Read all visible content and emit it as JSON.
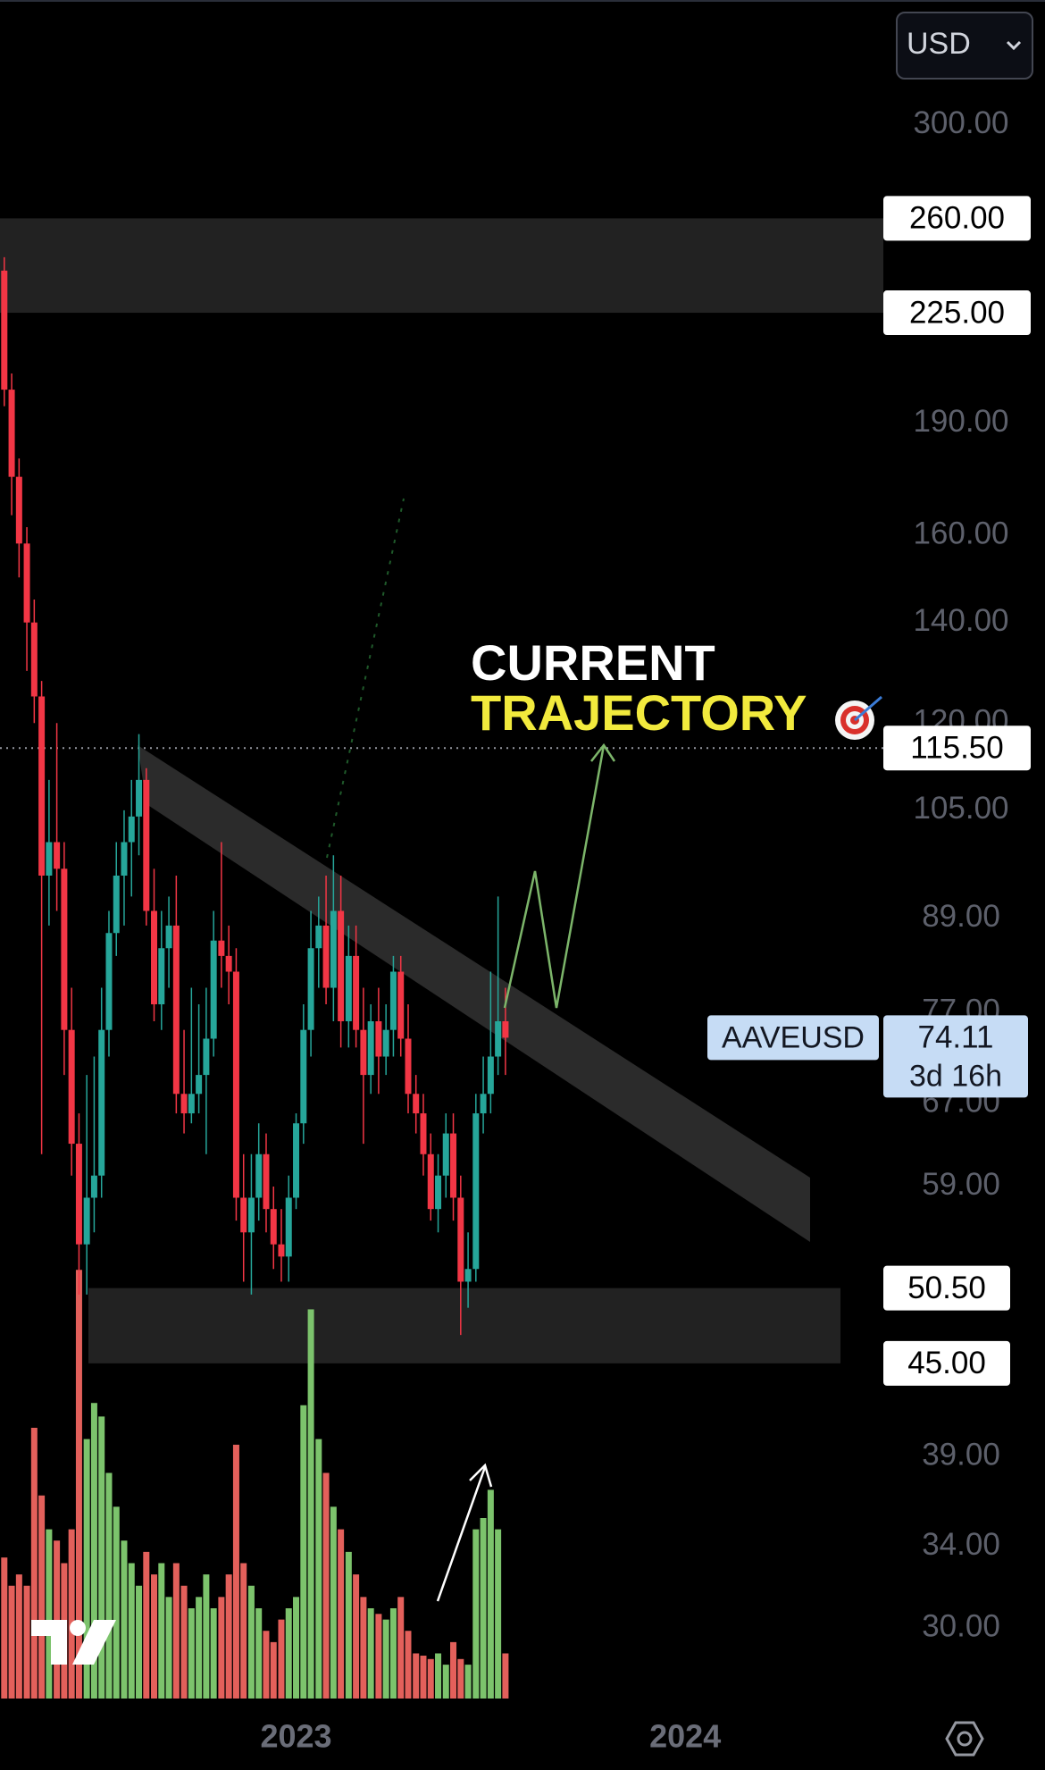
{
  "chart_data": {
    "type": "candlestick",
    "log_scale": true,
    "currency": "USD",
    "x": [
      2022.25,
      2022.269,
      2022.288,
      2022.308,
      2022.327,
      2022.346,
      2022.365,
      2022.385,
      2022.404,
      2022.423,
      2022.442,
      2022.462,
      2022.481,
      2022.5,
      2022.519,
      2022.538,
      2022.558,
      2022.577,
      2022.596,
      2022.615,
      2022.635,
      2022.654,
      2022.673,
      2022.692,
      2022.712,
      2022.731,
      2022.75,
      2022.769,
      2022.788,
      2022.808,
      2022.827,
      2022.846,
      2022.865,
      2022.885,
      2022.904,
      2022.923,
      2022.942,
      2022.962,
      2022.981,
      2023.0,
      2023.019,
      2023.038,
      2023.058,
      2023.077,
      2023.096,
      2023.115,
      2023.135,
      2023.154,
      2023.173,
      2023.192,
      2023.212,
      2023.231,
      2023.25,
      2023.269,
      2023.288,
      2023.308,
      2023.327,
      2023.346,
      2023.365,
      2023.385,
      2023.404,
      2023.423,
      2023.442,
      2023.462,
      2023.481,
      2023.5,
      2023.519,
      2023.538
    ],
    "open": [
      240,
      200,
      175,
      158,
      140,
      125,
      95,
      100,
      96,
      75,
      63,
      54,
      58,
      60,
      75,
      87,
      95,
      100,
      104,
      110,
      90,
      78,
      85,
      88,
      68,
      66,
      68,
      70,
      74,
      86,
      84,
      82,
      58,
      55,
      58,
      62,
      57,
      54,
      53,
      58,
      65,
      75,
      85,
      88,
      80,
      90,
      76,
      84,
      75,
      70,
      76,
      72,
      75,
      82,
      74,
      68,
      66,
      62,
      57,
      60,
      64,
      58,
      51,
      52,
      66,
      68,
      72,
      76
    ],
    "high": [
      245,
      205,
      180,
      162,
      145,
      128,
      110,
      120,
      100,
      80,
      66,
      70,
      72,
      80,
      90,
      100,
      105,
      110,
      118,
      112,
      96,
      90,
      92,
      95,
      75,
      80,
      78,
      80,
      90,
      100,
      88,
      85,
      62,
      62,
      65,
      64,
      59,
      57,
      60,
      66,
      78,
      90,
      92,
      95,
      98,
      95,
      88,
      88,
      80,
      78,
      80,
      78,
      84,
      84,
      78,
      70,
      68,
      64,
      62,
      66,
      66,
      60,
      55,
      68,
      72,
      82,
      92,
      80
    ],
    "low": [
      195,
      165,
      150,
      130,
      120,
      62,
      88,
      90,
      70,
      60,
      50,
      50,
      55,
      58,
      72,
      84,
      88,
      92,
      98,
      88,
      76,
      75,
      80,
      66,
      64,
      65,
      66,
      62,
      72,
      80,
      78,
      56,
      51,
      50,
      56,
      55,
      52,
      51,
      51,
      57,
      63,
      72,
      80,
      78,
      76,
      73,
      73,
      73,
      63,
      68,
      68,
      70,
      72,
      72,
      66,
      64,
      60,
      56,
      55,
      58,
      56,
      47,
      49,
      51,
      64,
      66,
      70,
      70
    ],
    "close": [
      200,
      175,
      158,
      140,
      125,
      95,
      100,
      96,
      75,
      63,
      54,
      58,
      60,
      75,
      87,
      95,
      100,
      104,
      110,
      90,
      78,
      85,
      88,
      68,
      66,
      68,
      70,
      74,
      86,
      84,
      82,
      58,
      55,
      58,
      62,
      57,
      54,
      53,
      58,
      65,
      75,
      85,
      88,
      80,
      90,
      76,
      84,
      75,
      70,
      76,
      72,
      75,
      82,
      74,
      68,
      66,
      62,
      57,
      60,
      64,
      58,
      51,
      52,
      66,
      68,
      72,
      76,
      74.11
    ],
    "volume": [
      125,
      100,
      110,
      100,
      240,
      180,
      150,
      140,
      120,
      150,
      380,
      230,
      262,
      250,
      200,
      170,
      140,
      120,
      100,
      130,
      110,
      120,
      90,
      120,
      100,
      80,
      90,
      110,
      80,
      90,
      110,
      225,
      120,
      100,
      80,
      60,
      50,
      70,
      80,
      90,
      260,
      345,
      230,
      200,
      170,
      150,
      130,
      110,
      90,
      80,
      75,
      70,
      80,
      90,
      60,
      40,
      38,
      35,
      40,
      30,
      50,
      35,
      30,
      150,
      160,
      185,
      150,
      40
    ],
    "volume_lim": [
      0,
      400
    ],
    "up_color": "#26a69a",
    "down_color": "#f23645",
    "volume_up_color": "#7cc36c",
    "volume_down_color": "#e3605b",
    "xlim": [
      2022.239,
      2024.5
    ],
    "xticks": [
      2023,
      2024
    ],
    "ylim": [
      26.93,
      363.3
    ],
    "yticks": [
      {
        "value": 300,
        "label": "300.00"
      },
      {
        "value": 190,
        "label": "190.00"
      },
      {
        "value": 160,
        "label": "160.00"
      },
      {
        "value": 140,
        "label": "140.00"
      },
      {
        "value": 120,
        "label": "120.00"
      },
      {
        "value": 105,
        "label": "105.00"
      },
      {
        "value": 89,
        "label": "89.00"
      },
      {
        "value": 77,
        "label": "77.00"
      },
      {
        "value": 67,
        "label": "67.00"
      },
      {
        "value": 59,
        "label": "59.00"
      },
      {
        "value": 39,
        "label": "39.00"
      },
      {
        "value": 34,
        "label": "34.00"
      },
      {
        "value": 30,
        "label": "30.00"
      }
    ],
    "levels": [
      {
        "value": 260,
        "label": "260.00"
      },
      {
        "value": 225,
        "label": "225.00"
      },
      {
        "value": 115.5,
        "label": "115.50"
      },
      {
        "value": 50.5,
        "label": "50.50"
      },
      {
        "value": 45,
        "label": "45.00"
      }
    ],
    "price_tag": {
      "symbol": "AAVEUSD",
      "value": 74.11,
      "countdown": "3d 16h"
    },
    "annotations": {
      "line1": "CURRENT",
      "line2": "TRAJECTORY"
    }
  }
}
